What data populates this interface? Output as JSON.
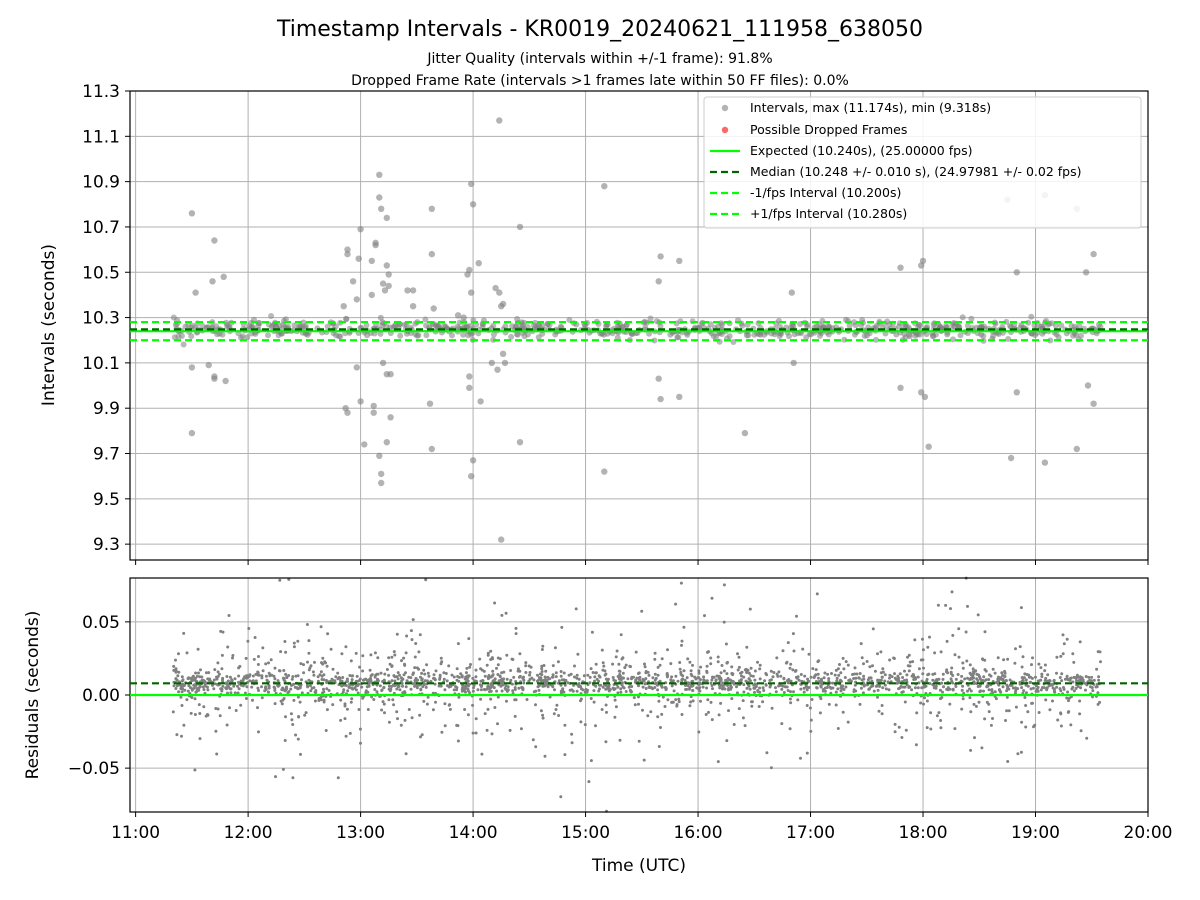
{
  "title": "Timestamp Intervals - KR0019_20240621_111958_638050",
  "subtitle_1": "Jitter Quality (intervals within +/-1 frame): 91.8%",
  "subtitle_2": "Dropped Frame Rate (intervals >1 frames late within 50 FF files): 0.0%",
  "colors": {
    "points": "#808080",
    "dropped": "#ff0000",
    "expected": "#00ff00",
    "median": "#006400",
    "fps_interval": "#00ff00",
    "grid": "#b0b0b0"
  },
  "chart_data": [
    {
      "type": "scatter",
      "name": "intervals-panel",
      "xlabel": "",
      "ylabel": "Intervals (seconds)",
      "xlim": [
        "10:57",
        "20:00"
      ],
      "ylim": [
        9.23,
        11.3
      ],
      "y_ticks": [
        "9.3",
        "9.5",
        "9.7",
        "9.9",
        "10.1",
        "10.3",
        "10.5",
        "10.7",
        "10.9",
        "11.1",
        "11.3"
      ],
      "grid": true,
      "legend_position": "top-right",
      "legend": [
        "Intervals, max (11.174s), min (9.318s)",
        "Possible Dropped Frames",
        "Expected (10.240s), (25.00000 fps)",
        "Median (10.248 +/- 0.010 s), (24.97981 +/- 0.02 fps)",
        "-1/fps Interval (10.200s)",
        "+1/fps Interval (10.280s)"
      ],
      "reference_lines": {
        "expected": 10.24,
        "median": 10.248,
        "minus_1_fps": 10.2,
        "plus_1_fps": 10.28
      },
      "time_range": [
        "11:20",
        "19:35"
      ],
      "dense_band": {
        "center": 10.248,
        "spread": 0.035
      },
      "points": [
        {
          "x": "11:30",
          "y": 10.76
        },
        {
          "x": "11:30",
          "y": 9.79
        },
        {
          "x": "11:32",
          "y": 10.41
        },
        {
          "x": "11:30",
          "y": 10.08
        },
        {
          "x": "11:39",
          "y": 10.09
        },
        {
          "x": "11:41",
          "y": 10.46
        },
        {
          "x": "11:42",
          "y": 10.64
        },
        {
          "x": "11:42",
          "y": 10.04
        },
        {
          "x": "11:42",
          "y": 10.03
        },
        {
          "x": "11:47",
          "y": 10.48
        },
        {
          "x": "11:48",
          "y": 10.02
        },
        {
          "x": "12:51",
          "y": 10.35
        },
        {
          "x": "12:52",
          "y": 9.9
        },
        {
          "x": "12:53",
          "y": 9.88
        },
        {
          "x": "12:53",
          "y": 10.6
        },
        {
          "x": "12:53",
          "y": 10.58
        },
        {
          "x": "12:56",
          "y": 10.46
        },
        {
          "x": "12:58",
          "y": 10.38
        },
        {
          "x": "12:58",
          "y": 10.08
        },
        {
          "x": "12:59",
          "y": 10.56
        },
        {
          "x": "13:00",
          "y": 9.93
        },
        {
          "x": "13:00",
          "y": 10.69
        },
        {
          "x": "13:02",
          "y": 9.74
        },
        {
          "x": "13:06",
          "y": 10.55
        },
        {
          "x": "13:06",
          "y": 10.4
        },
        {
          "x": "13:07",
          "y": 9.91
        },
        {
          "x": "13:07",
          "y": 9.88
        },
        {
          "x": "13:08",
          "y": 10.63
        },
        {
          "x": "13:08",
          "y": 10.62
        },
        {
          "x": "13:10",
          "y": 10.93
        },
        {
          "x": "13:10",
          "y": 10.83
        },
        {
          "x": "13:10",
          "y": 9.69
        },
        {
          "x": "13:11",
          "y": 9.57
        },
        {
          "x": "13:11",
          "y": 9.61
        },
        {
          "x": "13:11",
          "y": 10.78
        },
        {
          "x": "13:12",
          "y": 10.45
        },
        {
          "x": "13:12",
          "y": 10.1
        },
        {
          "x": "13:13",
          "y": 10.42
        },
        {
          "x": "13:14",
          "y": 10.74
        },
        {
          "x": "13:14",
          "y": 10.53
        },
        {
          "x": "13:14",
          "y": 10.05
        },
        {
          "x": "13:14",
          "y": 9.75
        },
        {
          "x": "13:15",
          "y": 10.49
        },
        {
          "x": "13:15",
          "y": 10.44
        },
        {
          "x": "13:16",
          "y": 9.86
        },
        {
          "x": "13:16",
          "y": 10.05
        },
        {
          "x": "13:25",
          "y": 10.42
        },
        {
          "x": "13:28",
          "y": 10.42
        },
        {
          "x": "13:28",
          "y": 10.35
        },
        {
          "x": "13:37",
          "y": 9.92
        },
        {
          "x": "13:38",
          "y": 10.78
        },
        {
          "x": "13:38",
          "y": 10.58
        },
        {
          "x": "13:38",
          "y": 9.72
        },
        {
          "x": "13:39",
          "y": 10.34
        },
        {
          "x": "13:52",
          "y": 10.31
        },
        {
          "x": "13:55",
          "y": 10.3
        },
        {
          "x": "13:57",
          "y": 10.49
        },
        {
          "x": "13:58",
          "y": 10.04
        },
        {
          "x": "13:58",
          "y": 9.99
        },
        {
          "x": "13:58",
          "y": 10.51
        },
        {
          "x": "13:59",
          "y": 10.41
        },
        {
          "x": "13:59",
          "y": 10.89
        },
        {
          "x": "13:59",
          "y": 9.6
        },
        {
          "x": "14:00",
          "y": 9.67
        },
        {
          "x": "14:00",
          "y": 10.8
        },
        {
          "x": "14:03",
          "y": 10.54
        },
        {
          "x": "14:04",
          "y": 9.93
        },
        {
          "x": "14:10",
          "y": 10.1
        },
        {
          "x": "14:12",
          "y": 10.43
        },
        {
          "x": "14:13",
          "y": 10.07
        },
        {
          "x": "14:14",
          "y": 11.17
        },
        {
          "x": "14:14",
          "y": 10.41
        },
        {
          "x": "14:15",
          "y": 9.32
        },
        {
          "x": "14:15",
          "y": 10.35
        },
        {
          "x": "14:16",
          "y": 10.14
        },
        {
          "x": "14:16",
          "y": 10.36
        },
        {
          "x": "14:17",
          "y": 10.1
        },
        {
          "x": "14:25",
          "y": 10.7
        },
        {
          "x": "14:25",
          "y": 9.75
        },
        {
          "x": "15:10",
          "y": 10.88
        },
        {
          "x": "15:10",
          "y": 9.62
        },
        {
          "x": "15:39",
          "y": 10.46
        },
        {
          "x": "15:39",
          "y": 10.03
        },
        {
          "x": "15:40",
          "y": 10.57
        },
        {
          "x": "15:40",
          "y": 9.94
        },
        {
          "x": "15:50",
          "y": 10.55
        },
        {
          "x": "15:50",
          "y": 9.95
        },
        {
          "x": "16:25",
          "y": 9.79
        },
        {
          "x": "16:50",
          "y": 10.41
        },
        {
          "x": "16:51",
          "y": 10.1
        },
        {
          "x": "17:48",
          "y": 10.52
        },
        {
          "x": "17:48",
          "y": 9.99
        },
        {
          "x": "17:59",
          "y": 10.53
        },
        {
          "x": "17:59",
          "y": 9.97
        },
        {
          "x": "18:00",
          "y": 10.55
        },
        {
          "x": "18:01",
          "y": 9.95
        },
        {
          "x": "18:03",
          "y": 9.73
        },
        {
          "x": "18:45",
          "y": 10.82
        },
        {
          "x": "18:47",
          "y": 9.68
        },
        {
          "x": "18:50",
          "y": 10.5
        },
        {
          "x": "18:50",
          "y": 9.97
        },
        {
          "x": "19:05",
          "y": 10.84
        },
        {
          "x": "19:05",
          "y": 9.66
        },
        {
          "x": "19:22",
          "y": 10.78
        },
        {
          "x": "19:22",
          "y": 9.72
        },
        {
          "x": "19:27",
          "y": 10.5
        },
        {
          "x": "19:28",
          "y": 10.0
        },
        {
          "x": "19:31",
          "y": 10.58
        },
        {
          "x": "19:31",
          "y": 9.92
        }
      ]
    },
    {
      "type": "scatter",
      "name": "residuals-panel",
      "xlabel": "Time (UTC)",
      "ylabel": "Residuals (seconds)",
      "xlim": [
        "10:57",
        "20:00"
      ],
      "x_ticks": [
        "11:00",
        "12:00",
        "13:00",
        "14:00",
        "15:00",
        "16:00",
        "17:00",
        "18:00",
        "19:00",
        "20:00"
      ],
      "ylim": [
        -0.08,
        0.08
      ],
      "y_ticks": [
        "−0.05",
        "0.00",
        "0.05"
      ],
      "grid": true,
      "reference_lines": {
        "zero": 0.0,
        "median_residual": 0.008
      },
      "time_range": [
        "11:20",
        "19:35"
      ],
      "dense_band": {
        "center": 0.008,
        "spread": 0.02
      }
    }
  ]
}
